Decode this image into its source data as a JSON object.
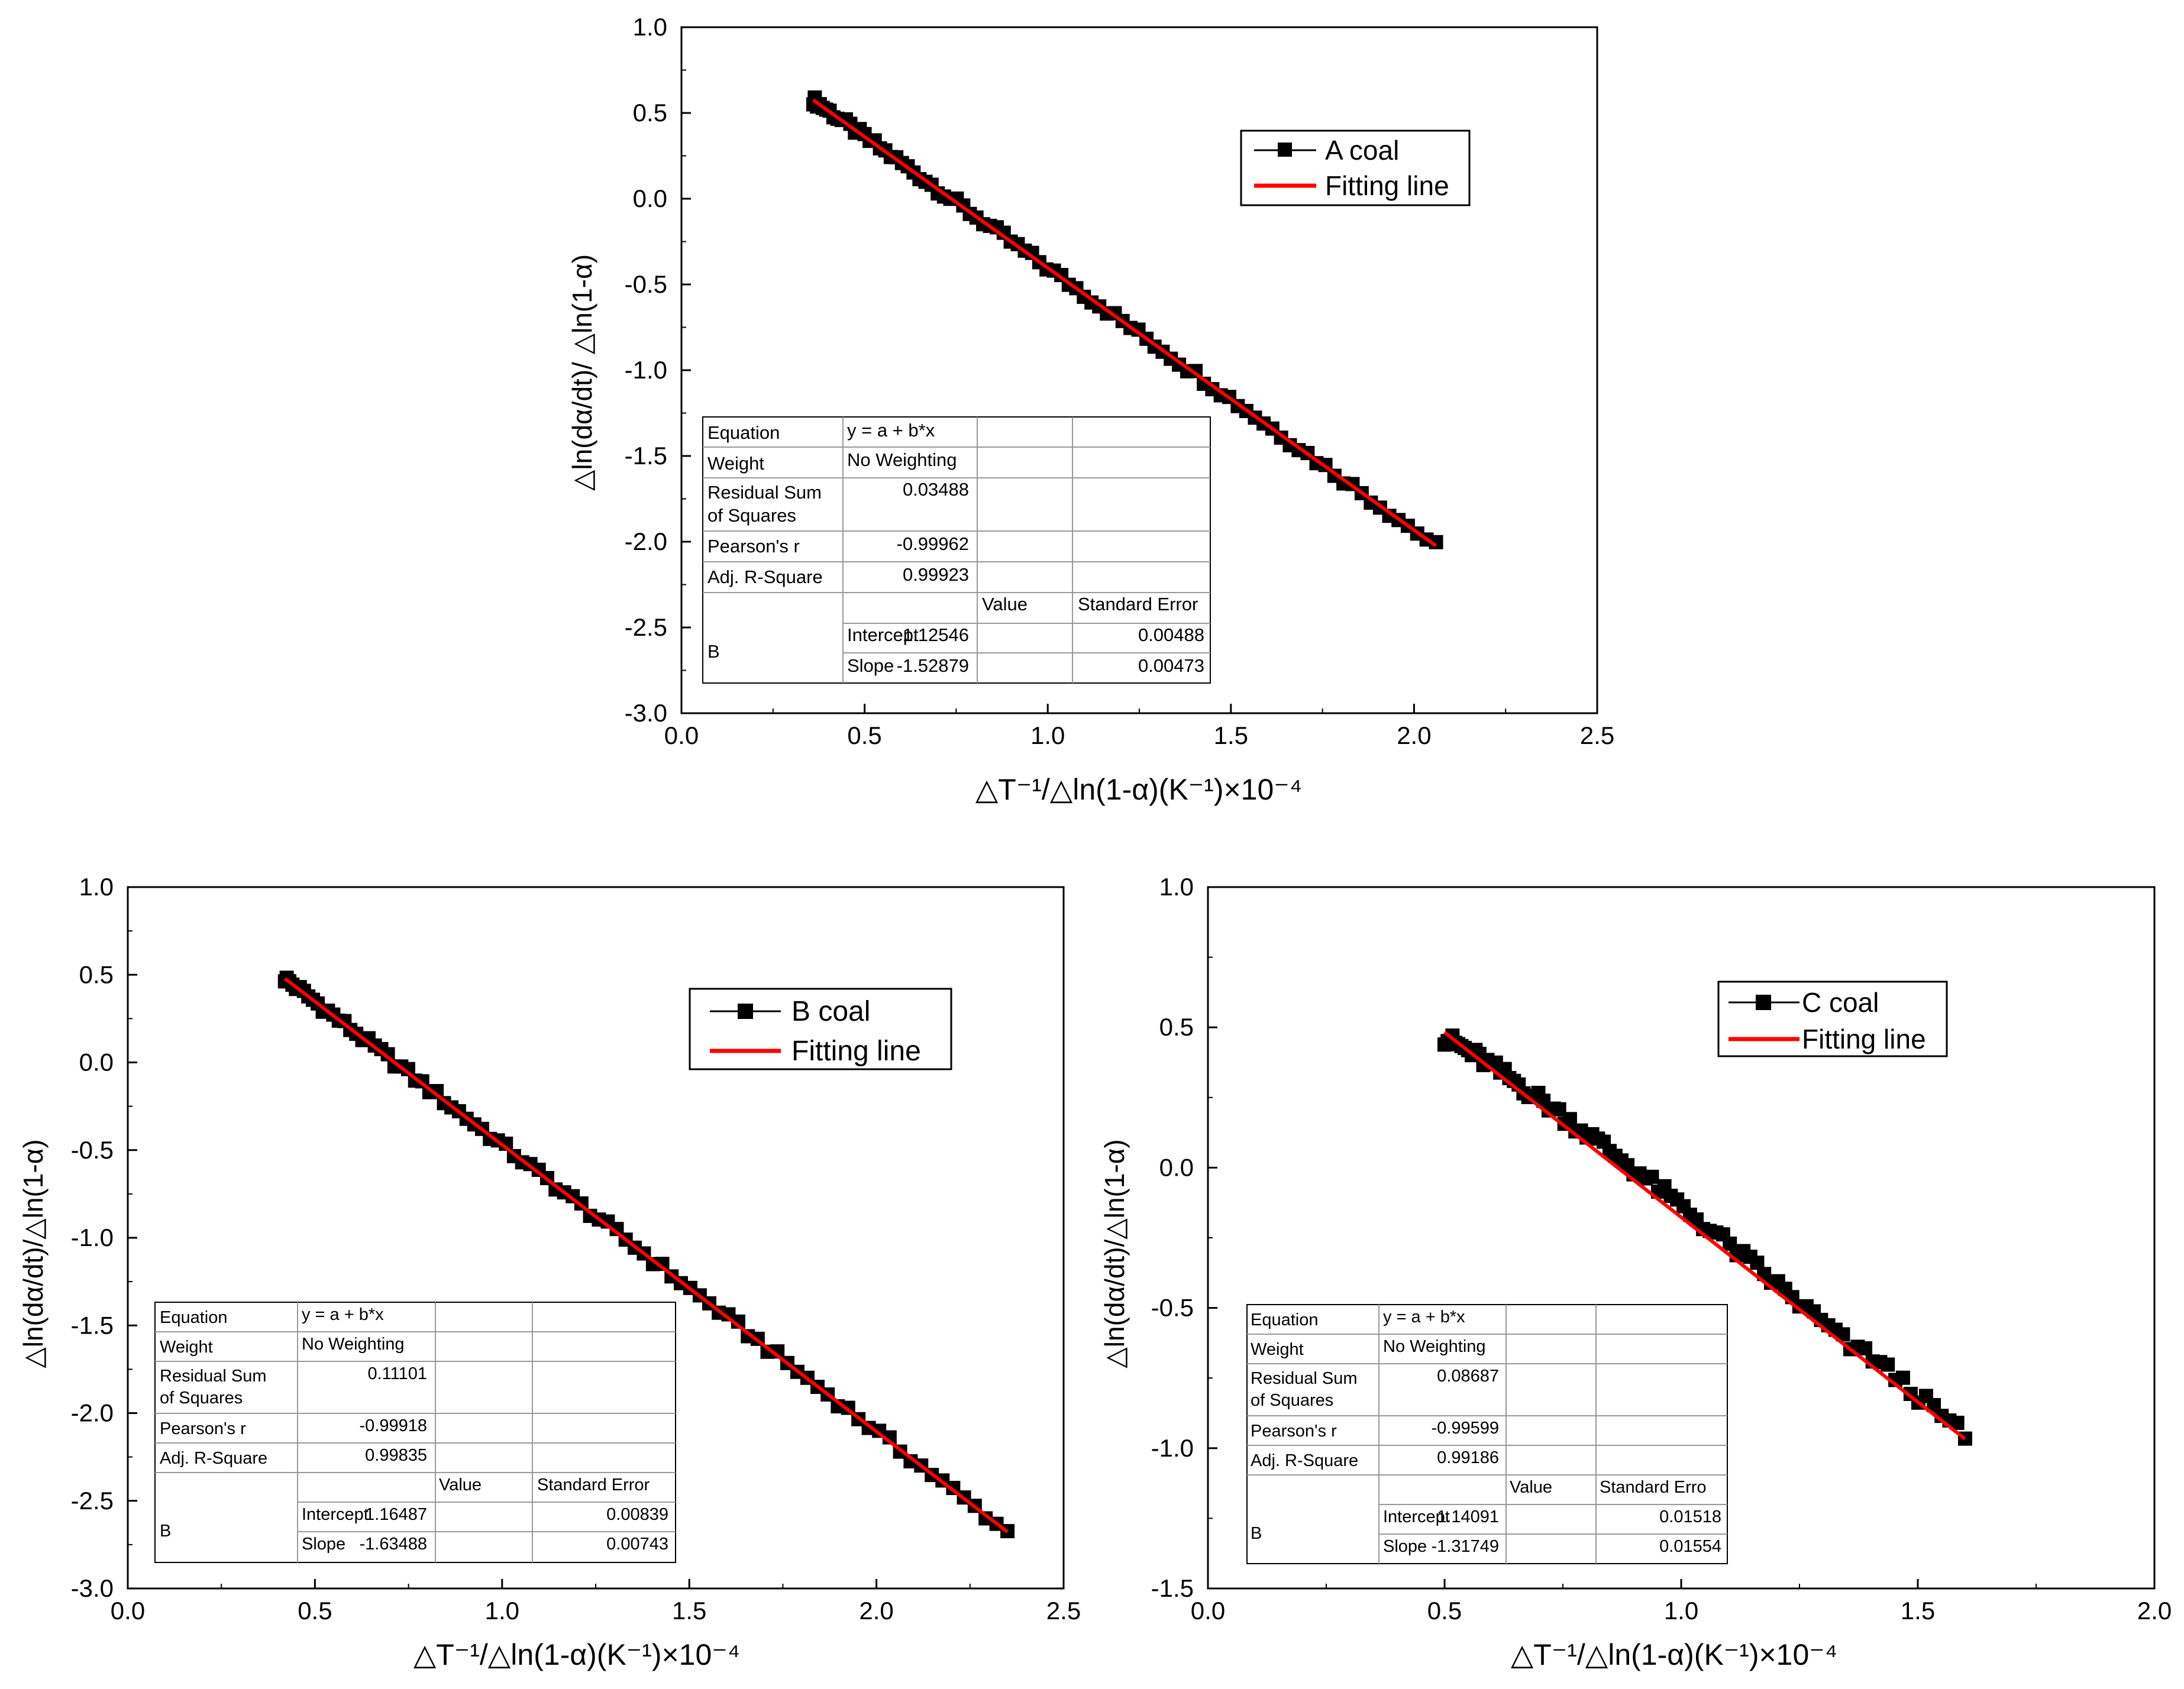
{
  "chart_data": [
    {
      "id": "A",
      "type": "scatter",
      "xlim": [
        0.0,
        2.5
      ],
      "ylim": [
        -3.0,
        1.0
      ],
      "xticks": [
        0.0,
        0.5,
        1.0,
        1.5,
        2.0,
        2.5
      ],
      "yticks": [
        -3.0,
        -2.5,
        -2.0,
        -1.5,
        -1.0,
        -0.5,
        0.0,
        0.5,
        1.0
      ],
      "xtick_labels": [
        "0.0",
        "0.5",
        "1.0",
        "1.5",
        "2.0",
        "2.5"
      ],
      "ytick_labels": [
        "-3.0",
        "-2.5",
        "-2.0",
        "-1.5",
        "-1.0",
        "-0.5",
        "0.0",
        "0.5",
        "1.0"
      ],
      "xlabel": "△T⁻¹/△ln(1-α)(K⁻¹)×10⁻⁴",
      "ylabel": "△ln(dα/dt)/ △ln(1-α)",
      "legend_location": "upper-right",
      "series": [
        {
          "name": "A coal",
          "kind": "markers",
          "color": "#000000",
          "x_range": [
            0.36,
            2.06
          ]
        },
        {
          "name": "Fitting line",
          "kind": "line",
          "color": "#ff0000",
          "intercept": 1.12546,
          "slope": -1.52879,
          "x_range": [
            0.36,
            2.06
          ]
        }
      ],
      "fit_table": {
        "equation_label": "Equation",
        "equation": "y = a + b*x",
        "weight_label": "Weight",
        "weight": "No Weighting",
        "rss_label_1": "Residual Sum",
        "rss_label_2": "of Squares",
        "rss": "0.03488",
        "pearson_label": "Pearson's r",
        "pearson": "-0.99962",
        "adjr2_label": "Adj. R-Square",
        "adjr2": "0.99923",
        "value_header": "Value",
        "se_header": "Standard Error",
        "group": "B",
        "intercept_label": "Intercept",
        "intercept": "1.12546",
        "intercept_se": "0.00488",
        "slope_label": "Slope",
        "slope": "-1.52879",
        "slope_se": "0.00473"
      }
    },
    {
      "id": "B",
      "type": "scatter",
      "xlim": [
        0.0,
        2.5
      ],
      "ylim": [
        -3.0,
        1.0
      ],
      "xticks": [
        0.0,
        0.5,
        1.0,
        1.5,
        2.0,
        2.5
      ],
      "yticks": [
        -3.0,
        -2.5,
        -2.0,
        -1.5,
        -1.0,
        -0.5,
        0.0,
        0.5,
        1.0
      ],
      "xtick_labels": [
        "0.0",
        "0.5",
        "1.0",
        "1.5",
        "2.0",
        "2.5"
      ],
      "ytick_labels": [
        "-3.0",
        "-2.5",
        "-2.0",
        "-1.5",
        "-1.0",
        "-0.5",
        "0.0",
        "0.5",
        "1.0"
      ],
      "xlabel": "△T⁻¹/△ln(1-α)(K⁻¹)×10⁻⁴",
      "ylabel": "△ln(dα/dt)/△ln(1-α)",
      "legend_location": "upper-right",
      "series": [
        {
          "name": "B coal",
          "kind": "markers",
          "color": "#000000",
          "x_range": [
            0.42,
            2.35
          ]
        },
        {
          "name": "Fitting line",
          "kind": "line",
          "color": "#ff0000",
          "intercept": 1.16487,
          "slope": -1.63488,
          "x_range": [
            0.42,
            2.35
          ]
        }
      ],
      "fit_table": {
        "equation_label": "Equation",
        "equation": "y = a + b*x",
        "weight_label": "Weight",
        "weight": "No Weighting",
        "rss_label_1": "Residual Sum",
        "rss_label_2": "of Squares",
        "rss": "0.11101",
        "pearson_label": "Pearson's r",
        "pearson": "-0.99918",
        "adjr2_label": "Adj. R-Square",
        "adjr2": "0.99835",
        "value_header": "Value",
        "se_header": "Standard Error",
        "group": "B",
        "intercept_label": "Intercept",
        "intercept": "1.16487",
        "intercept_se": "0.00839",
        "slope_label": "Slope",
        "slope": "-1.63488",
        "slope_se": "0.00743"
      }
    },
    {
      "id": "C",
      "type": "scatter",
      "xlim": [
        0.0,
        2.0
      ],
      "ylim": [
        -1.5,
        1.0
      ],
      "xticks": [
        0.0,
        0.5,
        1.0,
        1.5,
        2.0
      ],
      "yticks": [
        -1.5,
        -1.0,
        -0.5,
        0.0,
        0.5,
        1.0
      ],
      "xtick_labels": [
        "0.0",
        "0.5",
        "1.0",
        "1.5",
        "2.0"
      ],
      "ytick_labels": [
        "-1.5",
        "-1.0",
        "-0.5",
        "0.0",
        "0.5",
        "1.0"
      ],
      "xlabel": "△T⁻¹/△ln(1-α)(K⁻¹)×10⁻⁴",
      "ylabel": "△ln(dα/dt)/△ln(1-α)",
      "legend_location": "upper-right",
      "series": [
        {
          "name": "C coal",
          "kind": "markers",
          "color": "#000000",
          "x_range": [
            0.5,
            1.6
          ]
        },
        {
          "name": "Fitting line",
          "kind": "line",
          "color": "#ff0000",
          "intercept": 1.14091,
          "slope": -1.31749,
          "x_range": [
            0.5,
            1.6
          ]
        }
      ],
      "fit_table": {
        "equation_label": "Equation",
        "equation": "y = a + b*x",
        "weight_label": "Weight",
        "weight": "No Weighting",
        "rss_label_1": "Residual Sum",
        "rss_label_2": "of Squares",
        "rss": "0.08687",
        "pearson_label": "Pearson's r",
        "pearson": "-0.99599",
        "adjr2_label": "Adj. R-Square",
        "adjr2": "0.99186",
        "value_header": "Value",
        "se_header": "Standard Erro",
        "group": "B",
        "intercept_label": "Intercept",
        "intercept": "1.14091",
        "intercept_se": "0.01518",
        "slope_label": "Slope",
        "slope": "-1.31749",
        "slope_se": "0.01554"
      }
    }
  ]
}
